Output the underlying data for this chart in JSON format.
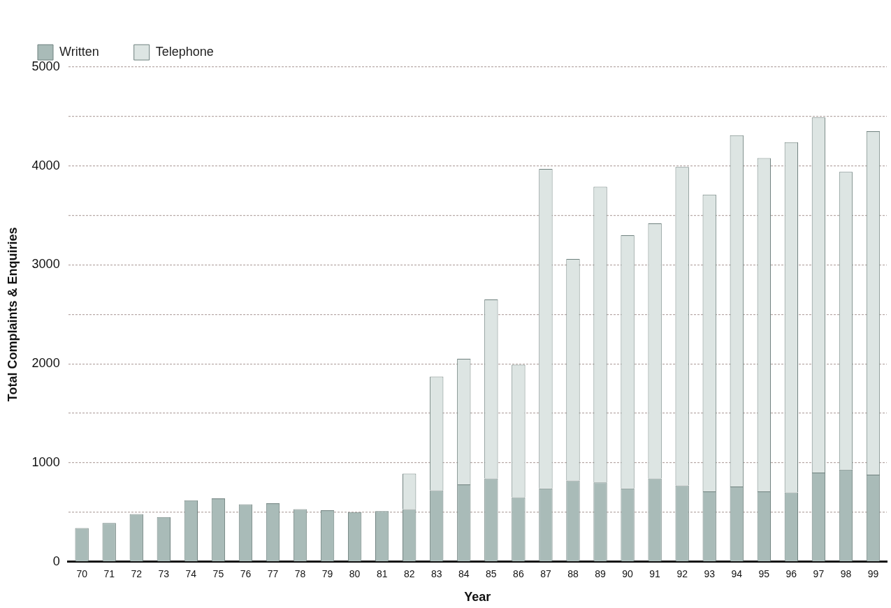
{
  "chart_data": {
    "type": "bar",
    "stacked": true,
    "xlabel": "Year",
    "ylabel": "Total Complaints & Enquiries",
    "categories": [
      "70",
      "71",
      "72",
      "73",
      "74",
      "75",
      "76",
      "77",
      "78",
      "79",
      "80",
      "81",
      "82",
      "83",
      "84",
      "85",
      "86",
      "87",
      "88",
      "89",
      "90",
      "91",
      "92",
      "93",
      "94",
      "95",
      "96",
      "97",
      "98",
      "99"
    ],
    "series": [
      {
        "name": "Written",
        "color": "#a9bbb8",
        "values": [
          340,
          390,
          480,
          450,
          620,
          640,
          580,
          590,
          530,
          520,
          500,
          510,
          530,
          720,
          780,
          840,
          650,
          740,
          820,
          800,
          740,
          840,
          770,
          710,
          760,
          710,
          700,
          900,
          930,
          880
        ]
      },
      {
        "name": "Telephone",
        "color": "#dde5e3",
        "values": [
          0,
          0,
          0,
          0,
          0,
          0,
          0,
          0,
          0,
          0,
          0,
          0,
          360,
          1150,
          1270,
          1810,
          1340,
          3230,
          2240,
          2990,
          2560,
          2580,
          3220,
          3000,
          3550,
          3370,
          3540,
          3590,
          3010,
          3470
        ]
      }
    ],
    "ylim": [
      0,
      5000
    ],
    "yticks": [
      0,
      {
        "value": 500,
        "label": null
      },
      1000,
      {
        "value": 1500,
        "label": null
      },
      2000,
      {
        "value": 2500,
        "label": null
      },
      3000,
      {
        "value": 3500,
        "label": null
      },
      4000,
      {
        "value": 4500,
        "label": null
      },
      5000
    ],
    "grid": "y",
    "legend": "top left"
  }
}
